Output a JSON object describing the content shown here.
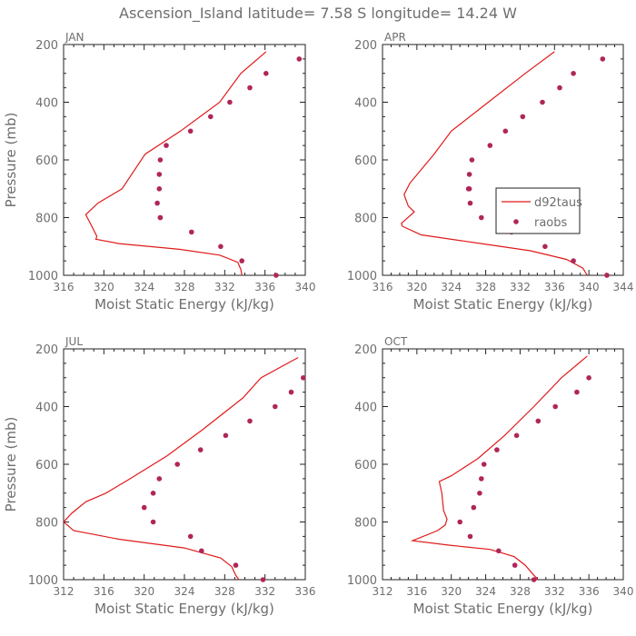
{
  "figure": {
    "title": "Ascension_Island   latitude= 7.58 S longitude= 14.24 W",
    "legend": {
      "model_label": "d92taus",
      "obs_label": "raobs"
    },
    "colors": {
      "model": "#e01a1a",
      "obs": "#b0265a",
      "axis": "#222222",
      "text": "#6e6e6e"
    }
  },
  "chart_data": [
    {
      "type": "line",
      "panel": "JAN",
      "title": "JAN",
      "xlabel": "Moist Static Energy (kJ/kg)",
      "ylabel": "Pressure (mb)",
      "xlim": [
        316,
        340
      ],
      "ylim": [
        1000,
        200
      ],
      "xticks": [
        316,
        320,
        324,
        328,
        332,
        336,
        340
      ],
      "yticks": [
        200,
        400,
        600,
        800,
        1000
      ],
      "series": [
        {
          "name": "d92taus",
          "style": "line",
          "x": [
            336.1,
            333.6,
            331.5,
            327.6,
            324.1,
            321.8,
            319.4,
            318.2,
            318.8,
            319.3,
            319.2,
            321.5,
            327.5,
            331.5,
            333.3,
            333.6,
            333.7
          ],
          "y": [
            225,
            300,
            400,
            500,
            580,
            700,
            750,
            790,
            830,
            865,
            875,
            890,
            910,
            930,
            955,
            980,
            1000
          ]
        },
        {
          "name": "raobs",
          "style": "points",
          "x": [
            339.4,
            336.1,
            334.5,
            332.5,
            330.6,
            328.6,
            326.2,
            325.6,
            325.5,
            325.5,
            325.3,
            325.6,
            325.6,
            328.7,
            331.6,
            333.7,
            337.1
          ],
          "y": [
            250,
            300,
            350,
            400,
            450,
            500,
            550,
            600,
            650,
            700,
            750,
            800,
            800,
            850,
            900,
            950,
            1000
          ]
        }
      ]
    },
    {
      "type": "line",
      "panel": "APR",
      "title": "APR",
      "xlabel": "Moist Static Energy (kJ/kg)",
      "ylabel": "",
      "xlim": [
        316,
        344
      ],
      "ylim": [
        1000,
        200
      ],
      "xticks": [
        316,
        320,
        324,
        328,
        332,
        336,
        340,
        344
      ],
      "yticks": [
        200,
        400,
        600,
        800,
        1000
      ],
      "show_legend": true,
      "series": [
        {
          "name": "d92taus",
          "style": "line",
          "x": [
            336.0,
            332.6,
            328.3,
            324.0,
            322.0,
            319.2,
            318.5,
            319.0,
            319.7,
            318.2,
            318.3,
            320.5,
            327.5,
            333.2,
            337.4,
            339.3,
            339.8
          ],
          "y": [
            225,
            300,
            400,
            500,
            580,
            680,
            720,
            760,
            780,
            820,
            830,
            860,
            890,
            915,
            945,
            975,
            1000
          ]
        },
        {
          "name": "raobs",
          "style": "points",
          "x": [
            341.6,
            338.2,
            336.6,
            334.6,
            332.3,
            330.3,
            328.5,
            326.4,
            326.1,
            326.0,
            326.1,
            326.2,
            327.5,
            331.0,
            334.9,
            338.2,
            342.1
          ],
          "y": [
            250,
            300,
            350,
            400,
            450,
            500,
            550,
            600,
            650,
            700,
            700,
            750,
            800,
            850,
            900,
            950,
            1000
          ]
        }
      ]
    },
    {
      "type": "line",
      "panel": "JUL",
      "title": "JUL",
      "xlabel": "Moist Static Energy (kJ/kg)",
      "ylabel": "Pressure (mb)",
      "xlim": [
        312,
        336
      ],
      "ylim": [
        1000,
        200
      ],
      "xticks": [
        312,
        316,
        320,
        324,
        328,
        332,
        336
      ],
      "yticks": [
        200,
        400,
        600,
        800,
        1000
      ],
      "series": [
        {
          "name": "d92taus",
          "style": "line",
          "x": [
            335.3,
            331.6,
            329.8,
            325.8,
            322.3,
            318.6,
            316.2,
            314.2,
            312.8,
            312.0,
            313.0,
            317.5,
            324.0,
            327.6,
            328.7,
            329.1,
            329.4
          ],
          "y": [
            230,
            300,
            370,
            480,
            570,
            650,
            700,
            730,
            770,
            800,
            830,
            860,
            890,
            925,
            955,
            985,
            1000
          ]
        },
        {
          "name": "raobs",
          "style": "points",
          "x": [
            335.8,
            334.6,
            333.0,
            330.5,
            328.1,
            325.6,
            323.3,
            321.5,
            320.9,
            320.0,
            320.9,
            324.6,
            325.7,
            329.1,
            331.8
          ],
          "y": [
            300,
            350,
            400,
            450,
            500,
            550,
            600,
            650,
            700,
            750,
            800,
            850,
            900,
            950,
            1000
          ]
        }
      ]
    },
    {
      "type": "line",
      "panel": "OCT",
      "title": "OCT",
      "xlabel": "Moist Static Energy (kJ/kg)",
      "ylabel": "",
      "xlim": [
        312,
        340
      ],
      "ylim": [
        1000,
        200
      ],
      "xticks": [
        312,
        316,
        320,
        324,
        328,
        332,
        336,
        340
      ],
      "yticks": [
        200,
        400,
        600,
        800,
        1000
      ],
      "series": [
        {
          "name": "d92taus",
          "style": "line",
          "x": [
            335.8,
            332.8,
            329.6,
            326.2,
            323.1,
            320.0,
            318.6,
            318.9,
            319.1,
            319.5,
            319.3,
            318.4,
            315.5,
            319.6,
            324.5,
            327.3,
            328.6,
            329.6,
            330.1
          ],
          "y": [
            225,
            300,
            400,
            500,
            580,
            640,
            660,
            700,
            760,
            790,
            810,
            830,
            865,
            880,
            895,
            920,
            950,
            985,
            1000
          ]
        },
        {
          "name": "raobs",
          "style": "points",
          "x": [
            336.0,
            334.6,
            332.1,
            330.1,
            327.6,
            325.3,
            323.8,
            323.5,
            323.3,
            322.6,
            321.0,
            322.2,
            325.5,
            327.4,
            329.6
          ],
          "y": [
            300,
            350,
            400,
            450,
            500,
            550,
            600,
            650,
            700,
            750,
            800,
            850,
            900,
            950,
            1000
          ]
        }
      ]
    }
  ]
}
